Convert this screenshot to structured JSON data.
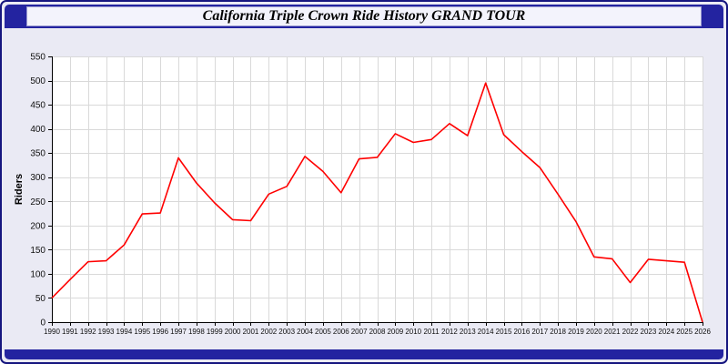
{
  "chart_data": {
    "type": "line",
    "title": "California Triple Crown Ride History GRAND TOUR",
    "xlabel": "",
    "ylabel": "Riders",
    "ylim": [
      0,
      550
    ],
    "ytick_step": 50,
    "grid": true,
    "legend": "none",
    "x": [
      1990,
      1991,
      1992,
      1993,
      1994,
      1995,
      1996,
      1997,
      1998,
      1999,
      2000,
      2001,
      2002,
      2003,
      2004,
      2005,
      2006,
      2007,
      2008,
      2009,
      2010,
      2011,
      2012,
      2013,
      2014,
      2015,
      2016,
      2017,
      2018,
      2019,
      2020,
      2021,
      2022,
      2023,
      2024,
      2025,
      2026
    ],
    "series": [
      {
        "name": "Riders",
        "color": "#ff0000",
        "values": [
          50,
          88,
          125,
          127,
          160,
          224,
          226,
          340,
          288,
          247,
          212,
          210,
          265,
          281,
          343,
          312,
          268,
          338,
          341,
          390,
          372,
          378,
          411,
          386,
          495,
          388,
          353,
          320,
          265,
          208,
          135,
          131,
          82,
          130,
          127,
          124,
          0
        ]
      }
    ]
  },
  "colors": {
    "page_bg": "#eaeaf4",
    "frame_border": "#16167f",
    "titlebar_bg": "#2323a0",
    "title_box_bg": "#f3f3fc",
    "plot_bg": "#ffffff",
    "grid_color": "#d9d9d9",
    "axis_color": "#000000",
    "tick_label_color": "#101010",
    "line_color": "#ff0000"
  }
}
